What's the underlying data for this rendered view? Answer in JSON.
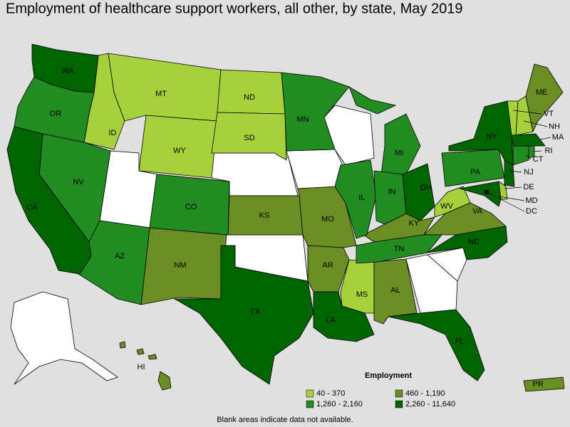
{
  "title": "Employment of healthcare support workers, all other, by state, May 2019",
  "legend": {
    "title": "Employment",
    "items": [
      {
        "label": "40 - 370",
        "color": "#a6d13b",
        "states": [
          "ID",
          "MT",
          "WY",
          "ND",
          "SD",
          "MS",
          "WV",
          "VT",
          "NH",
          "DE"
        ]
      },
      {
        "label": "460 - 1,190",
        "color": "#6b8e23",
        "states": [
          "ME",
          "KS",
          "MO",
          "AR",
          "NM",
          "AL",
          "KY",
          "VA",
          "HI",
          "PR"
        ]
      },
      {
        "label": "1,260 - 2,160",
        "color": "#228b22",
        "states": [
          "OR",
          "NV",
          "AZ",
          "CO",
          "MN",
          "MI",
          "IL",
          "IN",
          "TN",
          "PA",
          "CT",
          "RI"
        ]
      },
      {
        "label": "2,260 - 11,640",
        "color": "#006400",
        "states": [
          "WA",
          "CA",
          "TX",
          "LA",
          "FL",
          "NC",
          "OH",
          "NY",
          "MA",
          "NJ",
          "MD",
          "DC"
        ]
      }
    ]
  },
  "footnote": "Blank areas indicate data not available."
}
